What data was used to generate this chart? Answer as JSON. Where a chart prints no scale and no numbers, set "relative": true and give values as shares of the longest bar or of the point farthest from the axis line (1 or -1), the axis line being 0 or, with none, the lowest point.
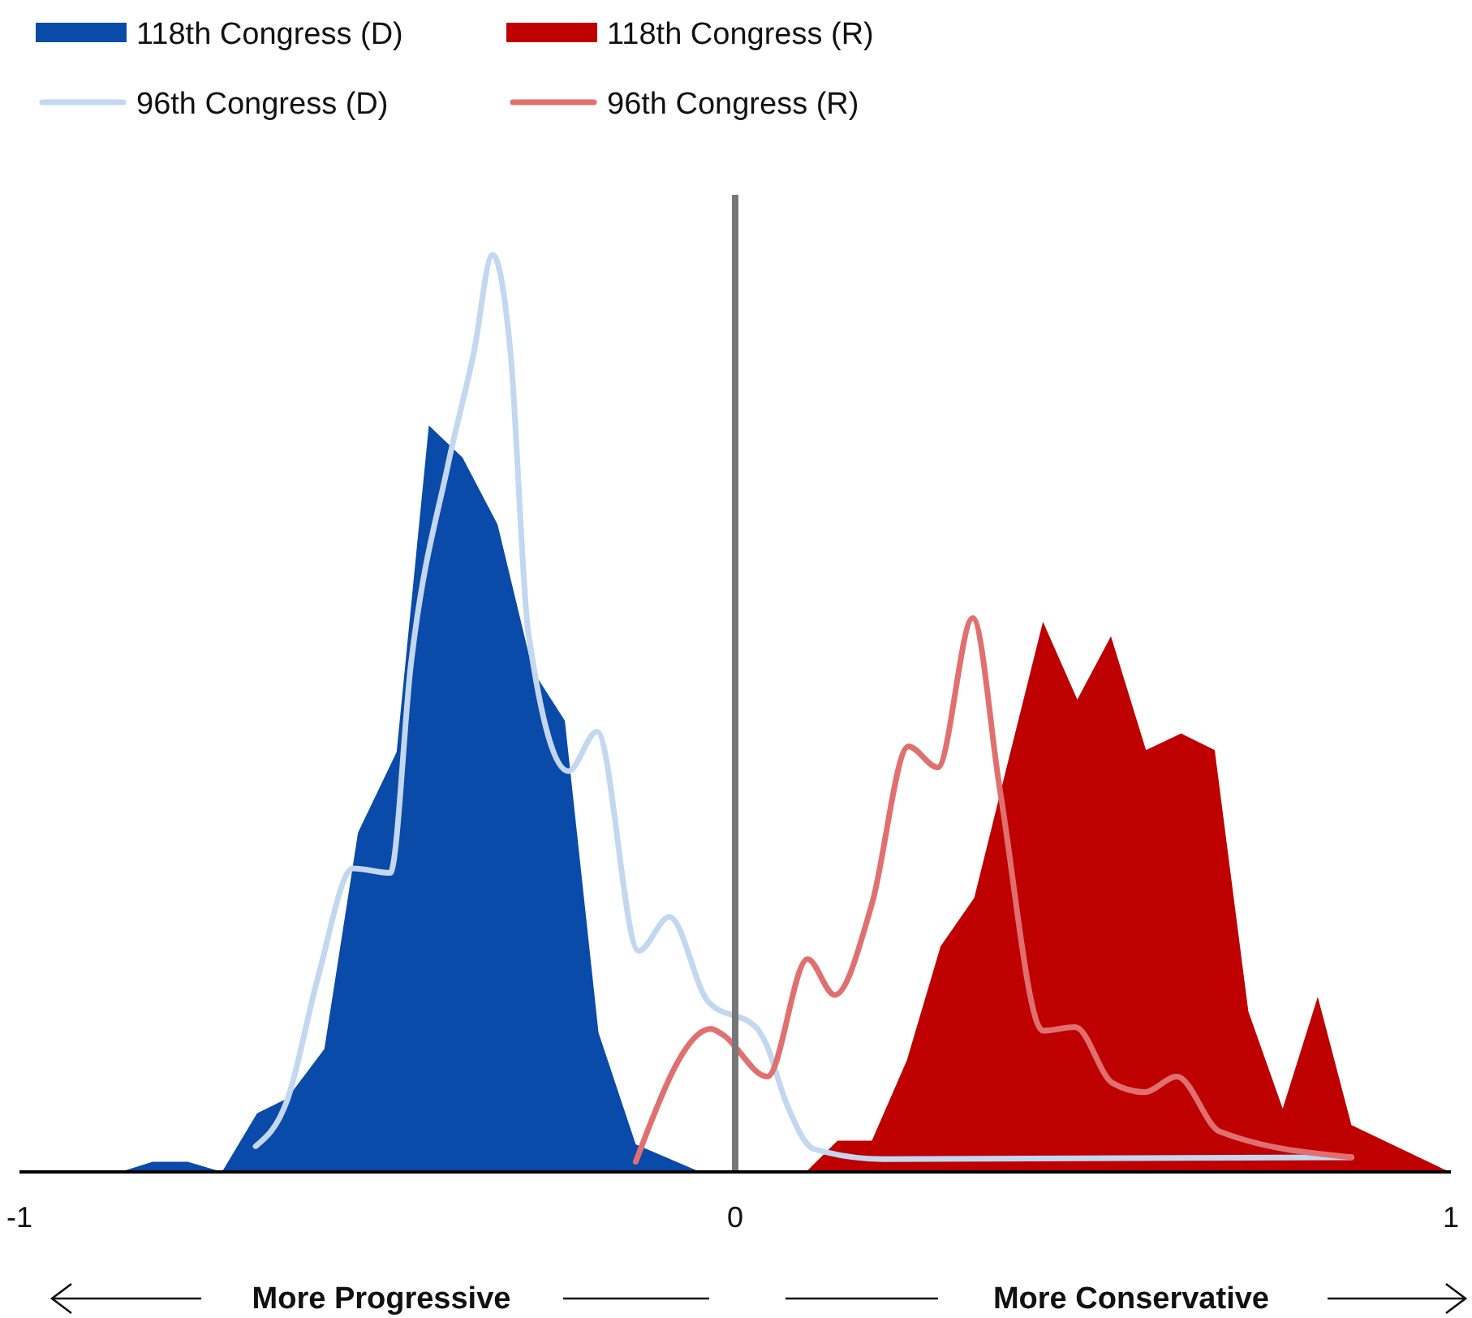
{
  "chart_data": {
    "type": "area",
    "relative": true,
    "xlim": [
      -1,
      1
    ],
    "xticks": [
      -1,
      0,
      1
    ],
    "legend": "top left",
    "grid": false,
    "series": [
      {
        "name": "118th Congress (D)",
        "color": "#0a4aa8",
        "x": [
          -0.859,
          -0.814,
          -0.765,
          -0.717,
          -0.668,
          -0.626,
          -0.574,
          -0.527,
          -0.473,
          -0.428,
          -0.381,
          -0.332,
          -0.283,
          -0.238,
          -0.191,
          -0.139,
          -0.049
        ],
        "values": [
          0,
          0.011,
          0.011,
          0,
          0.064,
          0.08,
          0.134,
          0.37,
          0.458,
          0.814,
          0.779,
          0.706,
          0.547,
          0.492,
          0.152,
          0.03,
          0
        ]
      },
      {
        "name": "118th Congress (R)",
        "color": "#bf0000",
        "x": [
          0.099,
          0.143,
          0.191,
          0.24,
          0.287,
          0.334,
          0.377,
          0.43,
          0.478,
          0.525,
          0.574,
          0.623,
          0.67,
          0.717,
          0.765,
          0.814,
          0.861,
          0.998
        ],
        "values": [
          0,
          0.034,
          0.034,
          0.122,
          0.246,
          0.299,
          0.434,
          0.6,
          0.515,
          0.584,
          0.46,
          0.478,
          0.46,
          0.175,
          0.069,
          0.191,
          0.051,
          0
        ]
      },
      {
        "name": "96th Congress (D)",
        "type": "line",
        "color": "#c3d7f0",
        "x": [
          -0.67,
          -0.626,
          -0.583,
          -0.534,
          -0.482,
          -0.453,
          -0.401,
          -0.365,
          -0.339,
          -0.314,
          -0.289,
          -0.233,
          -0.193,
          -0.135,
          -0.092,
          -0.038,
          0.031,
          0.043,
          0.072,
          0.11,
          0.206,
          0.861
        ],
        "values": [
          0.028,
          0.078,
          0.212,
          0.331,
          0.326,
          0.554,
          0.772,
          0.894,
          1,
          0.894,
          0.588,
          0.437,
          0.48,
          0.241,
          0.278,
          0.186,
          0.156,
          0.14,
          0.074,
          0.025,
          0.014,
          0.016
        ]
      },
      {
        "name": "96th Congress (R)",
        "type": "line",
        "color": "#e07070",
        "x": [
          -0.139,
          -0.034,
          -0.018,
          0.045,
          0.101,
          0.139,
          0.191,
          0.242,
          0.283,
          0.332,
          0.37,
          0.43,
          0.475,
          0.527,
          0.572,
          0.617,
          0.677,
          0.861
        ],
        "values": [
          0.011,
          0.156,
          0.15,
          0.104,
          0.232,
          0.193,
          0.292,
          0.464,
          0.441,
          0.604,
          0.416,
          0.154,
          0.158,
          0.097,
          0.087,
          0.104,
          0.044,
          0.016
        ]
      }
    ],
    "ref_lines": [
      {
        "axis": "x",
        "value": 0,
        "color": "#777777"
      }
    ],
    "annotations": [
      "More Progressive",
      "More Conservative"
    ]
  }
}
